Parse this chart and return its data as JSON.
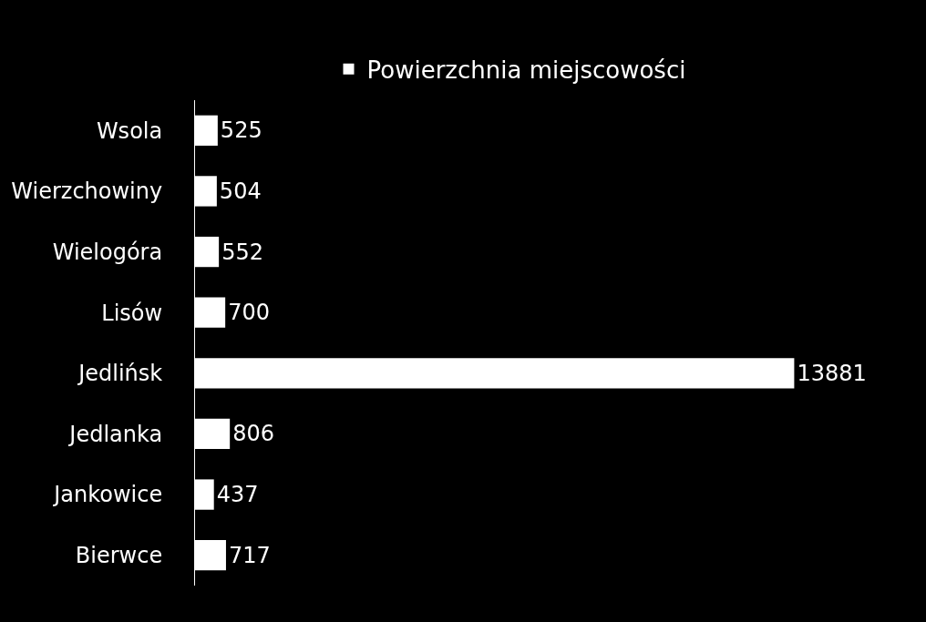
{
  "chart_data": {
    "type": "bar",
    "orientation": "horizontal",
    "categories": [
      "Wsola",
      "Wierzchowiny",
      "Wielogóra",
      "Lisów",
      "Jedlińsk",
      "Jedlanka",
      "Jankowice",
      "Bierwce"
    ],
    "series": [
      {
        "name": "Powierzchnia miejscowości",
        "color": "#ffffff",
        "values": [
          525,
          504,
          552,
          700,
          13881,
          806,
          437,
          717
        ]
      }
    ],
    "data_labels": true,
    "legend": "top"
  }
}
